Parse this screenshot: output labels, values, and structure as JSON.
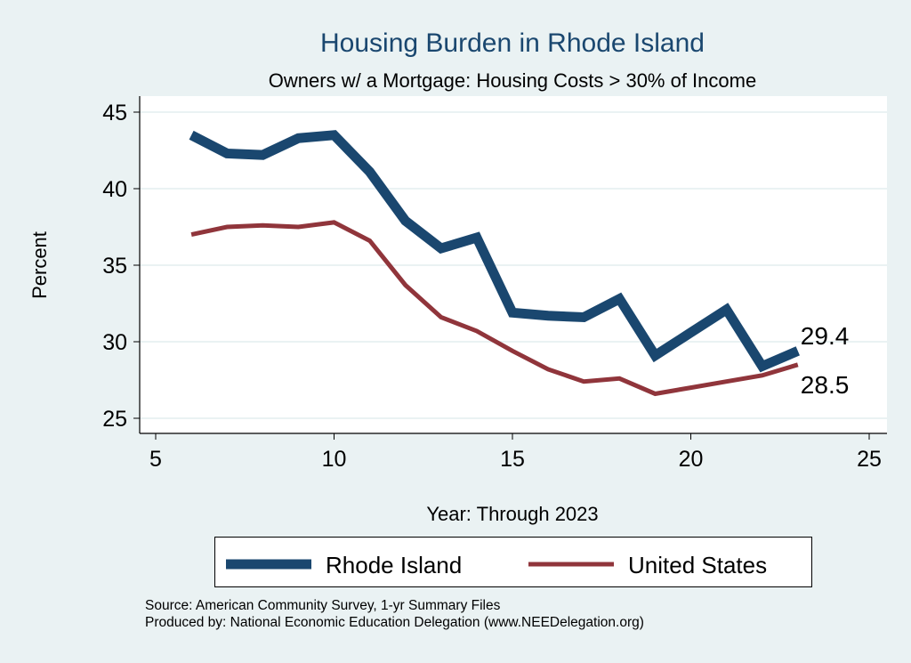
{
  "chart_data": {
    "type": "line",
    "title": "Housing Burden in Rhode Island",
    "subtitle": "Owners w/ a Mortgage: Housing Costs > 30% of Income",
    "xlabel": "Year: Through 2023",
    "ylabel": "Percent",
    "xlim": [
      5,
      25
    ],
    "ylim": [
      25,
      45
    ],
    "xticks": [
      "5",
      "10",
      "15",
      "20",
      "25"
    ],
    "yticks": [
      "25",
      "30",
      "35",
      "40",
      "45"
    ],
    "grid": true,
    "legend_position": "bottom",
    "x": [
      6,
      7,
      8,
      9,
      10,
      11,
      12,
      13,
      14,
      15,
      16,
      17,
      18,
      19,
      20,
      21,
      22,
      23
    ],
    "series": [
      {
        "name": "Rhode Island",
        "color": "#1a476f",
        "values": [
          43.5,
          42.3,
          42.2,
          43.3,
          43.5,
          41.1,
          37.9,
          36.1,
          36.8,
          31.9,
          31.7,
          31.6,
          32.8,
          29.1,
          30.6,
          32.1,
          28.4,
          29.4
        ],
        "end_label": "29.4"
      },
      {
        "name": "United States",
        "color": "#90353b",
        "values": [
          37.0,
          37.5,
          37.6,
          37.5,
          37.8,
          36.6,
          33.7,
          31.6,
          30.7,
          29.4,
          28.2,
          27.4,
          27.6,
          26.6,
          27.0,
          27.4,
          27.8,
          28.5
        ],
        "end_label": "28.5"
      }
    ]
  },
  "footer": {
    "source": "Source: American Community Survey, 1-yr Summary Files",
    "produced": "Produced by: National Economic Education Delegation (www.NEEDelegation.org)"
  }
}
